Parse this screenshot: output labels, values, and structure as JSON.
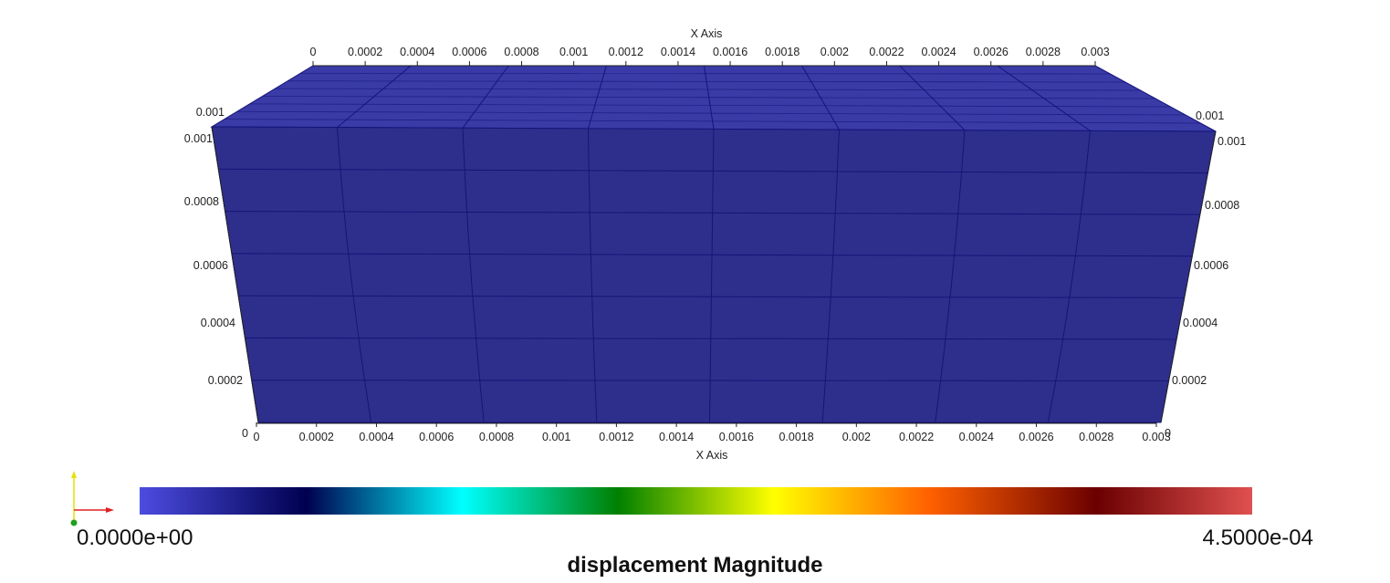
{
  "view": {
    "axes": {
      "top_x_title": "X Axis",
      "bottom_x_title": "X Axis",
      "top_x_ticks": [
        "0",
        "0.0002",
        "0.0004",
        "0.0006",
        "0.0008",
        "0.001",
        "0.0012",
        "0.0014",
        "0.0016",
        "0.0018",
        "0.002",
        "0.0022",
        "0.0024",
        "0.0026",
        "0.0028",
        "0.003"
      ],
      "bottom_x_ticks": [
        "0",
        "0.0002",
        "0.0004",
        "0.0006",
        "0.0008",
        "0.001",
        "0.0012",
        "0.0014",
        "0.0016",
        "0.0018",
        "0.002",
        "0.0022",
        "0.0024",
        "0.0026",
        "0.0028",
        "0.003"
      ],
      "left_y_ticks": [
        "0",
        "0.0002",
        "0.0004",
        "0.0006",
        "0.0008",
        "0.001"
      ],
      "right_y_ticks": [
        "0",
        "0.0002",
        "0.0004",
        "0.0006",
        "0.0008",
        "0.001"
      ],
      "left_depth_tick": "0.001",
      "right_depth_tick": "0.001"
    },
    "mesh": {
      "face_color": "#2e2f8c",
      "top_color": "#3a3ba6",
      "edge_color": "#14147a",
      "x_divisions": 8,
      "y_divisions": 8
    }
  },
  "colorbar": {
    "title": "displacement Magnitude",
    "min_label": "0.0000e+00",
    "max_label": "4.5000e-04",
    "stops": [
      {
        "pos": 0.0,
        "color": "#4c4ce0"
      },
      {
        "pos": 0.15,
        "color": "#000050"
      },
      {
        "pos": 0.29,
        "color": "#00ffff"
      },
      {
        "pos": 0.43,
        "color": "#008000"
      },
      {
        "pos": 0.57,
        "color": "#ffff00"
      },
      {
        "pos": 0.71,
        "color": "#ff6000"
      },
      {
        "pos": 0.86,
        "color": "#6b0000"
      },
      {
        "pos": 1.0,
        "color": "#e05050"
      }
    ]
  },
  "orientation_axes": {
    "x_color": "#e02020",
    "y_color": "#e8e000",
    "z_color": "#20a020"
  }
}
